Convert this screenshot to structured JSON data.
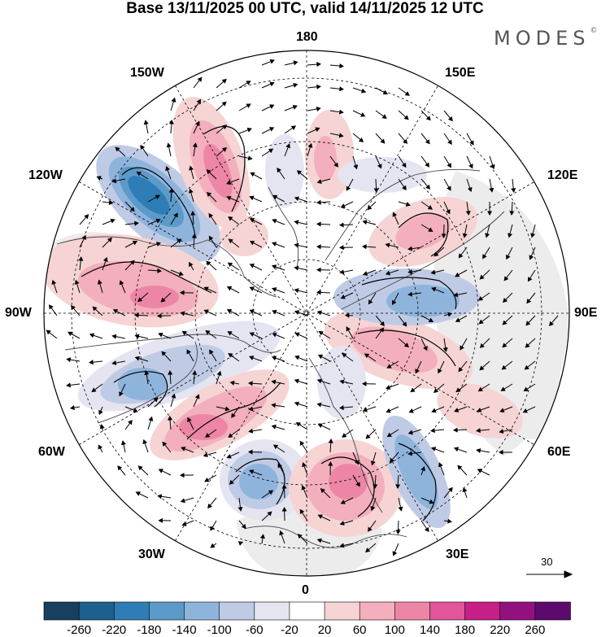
{
  "title": "Base 13/11/2025 00 UTC, valid 14/11/2025 12 UTC",
  "brand": {
    "name": "MODES",
    "mark": "©"
  },
  "longitude_labels": {
    "top": "180",
    "bottom": "0",
    "left": "90W",
    "right": "90E",
    "upper_left_1": "150W",
    "upper_left_2": "120W",
    "lower_left_1": "60W",
    "lower_left_2": "30W",
    "upper_right_1": "150E",
    "upper_right_2": "120E",
    "lower_right_1": "60E",
    "lower_right_2": "30E"
  },
  "reference_vector": {
    "label": "30"
  },
  "colorbar": {
    "labels": [
      "-260",
      "-220",
      "-180",
      "-140",
      "-100",
      "-60",
      "-20",
      "20",
      "60",
      "100",
      "140",
      "180",
      "220",
      "260"
    ],
    "colors": [
      "#17405f",
      "#1d5f8e",
      "#2f7db6",
      "#5b9ac9",
      "#8fb4dc",
      "#bfcbe5",
      "#e4e5f1",
      "#ffffff",
      "#f6d4d4",
      "#f3afbd",
      "#ed86a6",
      "#e2559a",
      "#c61f87",
      "#93117e",
      "#5d0a6e"
    ]
  },
  "anomalies": [
    {
      "id": "neg-alaska",
      "sign": "negative",
      "level": 5
    },
    {
      "id": "pos-gulf-alaska",
      "sign": "positive",
      "level": 3
    },
    {
      "id": "pos-hudson",
      "sign": "positive",
      "level": 2
    },
    {
      "id": "neg-labrador",
      "sign": "negative",
      "level": 3
    },
    {
      "id": "pos-atlantic",
      "sign": "positive",
      "level": 3
    },
    {
      "id": "neg-north-atlantic",
      "sign": "negative",
      "level": 3
    },
    {
      "id": "pos-europe",
      "sign": "positive",
      "level": 3
    },
    {
      "id": "neg-eastern-europe",
      "sign": "negative",
      "level": 3
    },
    {
      "id": "pos-west-siberia",
      "sign": "positive",
      "level": 2
    },
    {
      "id": "neg-central-siberia",
      "sign": "negative",
      "level": 2
    },
    {
      "id": "pos-east-siberia",
      "sign": "positive",
      "level": 2
    },
    {
      "id": "pos-bering",
      "sign": "positive",
      "level": 1
    }
  ]
}
